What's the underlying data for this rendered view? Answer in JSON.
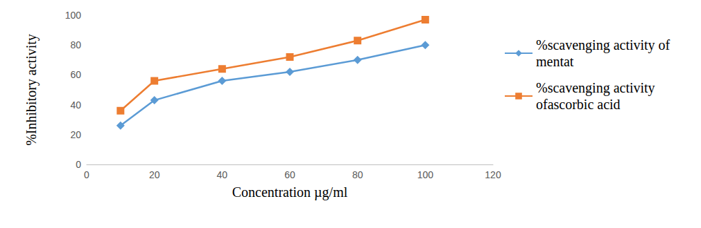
{
  "chart_data": {
    "type": "line",
    "x_label": "Concentration µg/ml",
    "y_label": "%Inhibitory activity",
    "x": [
      10,
      20,
      40,
      60,
      80,
      100
    ],
    "series": [
      {
        "name": "%scavenging activity of mentat",
        "color": "#5b9bd5",
        "marker": "diamond",
        "line_style": "solid",
        "values": [
          26,
          43,
          56,
          62,
          70,
          80
        ]
      },
      {
        "name": "%scavenging activity ofascorbic acid",
        "color": "#ed7d31",
        "marker": "square",
        "line_style": "solid",
        "values": [
          36,
          56,
          64,
          72,
          83,
          97
        ]
      }
    ],
    "xlim": [
      0,
      120
    ],
    "xticks": [
      0,
      20,
      40,
      60,
      80,
      100,
      120
    ],
    "ylim": [
      0,
      100
    ],
    "yticks": [
      0,
      20,
      40,
      60,
      80,
      100
    ],
    "grid": false,
    "legend": "right"
  }
}
